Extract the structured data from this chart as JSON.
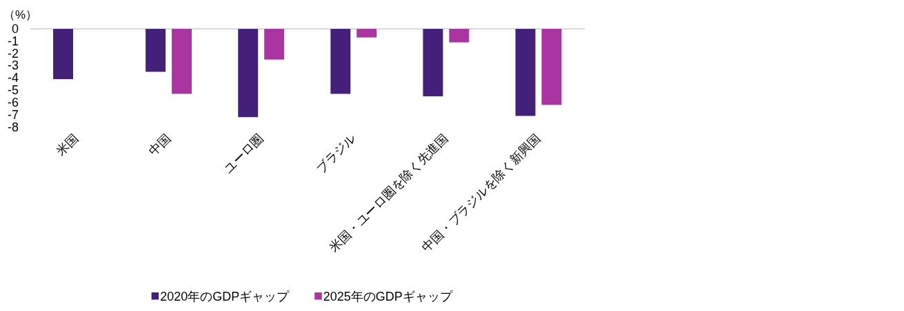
{
  "chart_data": {
    "type": "bar",
    "ylabel": "（%）",
    "categories": [
      "米国",
      "中国",
      "ユーロ圏",
      "ブラジル",
      "米国・ユーロ圏を除く先進国",
      "中国・ブラジルを除く新興国"
    ],
    "series": [
      {
        "name": "2020年のGDPギャップ",
        "color": "#44207b",
        "values": [
          -4.1,
          -3.5,
          -7.2,
          -5.3,
          -5.5,
          -7.1
        ]
      },
      {
        "name": "2025年のGDPギャップ",
        "color": "#aa34a2",
        "values": [
          null,
          -5.3,
          -2.5,
          -0.7,
          -1.1,
          -6.2
        ]
      }
    ],
    "ylim": [
      -8,
      0
    ],
    "yticks": [
      0,
      -1,
      -2,
      -3,
      -4,
      -5,
      -6,
      -7,
      -8
    ],
    "legend": "bottom"
  }
}
